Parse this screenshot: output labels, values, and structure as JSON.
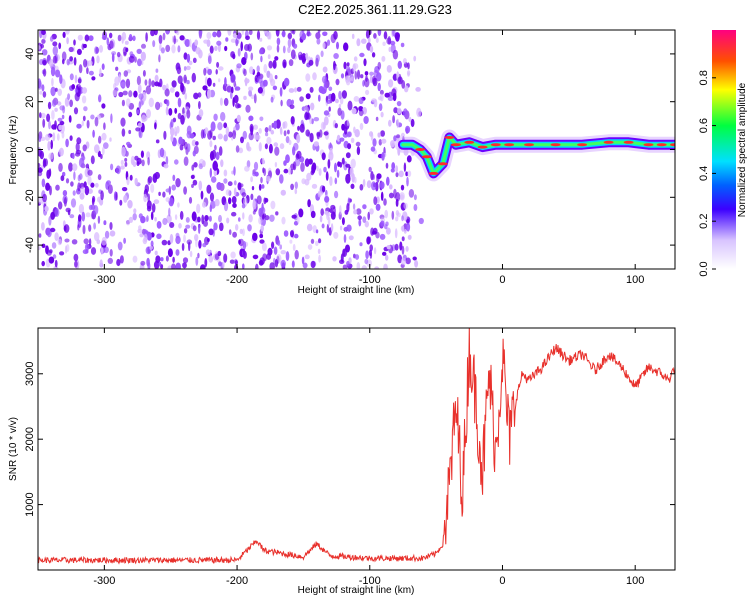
{
  "title": "C2E2.2025.361.11.29.G23",
  "colors": {
    "snr_line": "#e8312c",
    "speckle_dark": "#6a00e8",
    "speckle_light": "#d8b8ff"
  },
  "chart_data": [
    {
      "type": "heatmap",
      "xlabel": "Height of straight line (km)",
      "ylabel": "Frequency (Hz)",
      "xlim": [
        -350,
        130
      ],
      "ylim": [
        -50,
        50
      ],
      "xticks": [
        -300,
        -200,
        -100,
        0,
        100
      ],
      "yticks": [
        -40,
        -20,
        0,
        20,
        40
      ],
      "noise_region_x": [
        -350,
        -70
      ],
      "signal_track": {
        "x": [
          -75,
          -68,
          -62,
          -57,
          -52,
          -45,
          -40,
          -35,
          -25,
          -15,
          -5,
          5,
          20,
          40,
          60,
          80,
          95,
          110,
          120,
          130
        ],
        "y": [
          2,
          2,
          0,
          -3,
          -10,
          -6,
          5,
          2,
          3,
          1,
          2,
          2,
          2,
          2,
          2,
          3,
          3,
          2,
          2,
          2
        ]
      },
      "colorbar": {
        "label": "Normalized spectral amplitude",
        "ticks": [
          0.0,
          0.2,
          0.4,
          0.6,
          0.8
        ],
        "range": [
          0,
          1
        ],
        "tick_labels": [
          "0.0",
          "0.2",
          "0.4",
          "0.6",
          "0.8"
        ]
      }
    },
    {
      "type": "line",
      "xlabel": "Height of straight line (km)",
      "ylabel": "SNR (10 * v/v)",
      "xlim": [
        -350,
        130
      ],
      "ylim": [
        0,
        3700
      ],
      "xticks": [
        -300,
        -200,
        -100,
        0,
        100
      ],
      "yticks": [
        1000,
        2000,
        3000
      ],
      "series": [
        {
          "name": "SNR",
          "x": [
            -350,
            -300,
            -250,
            -200,
            -190,
            -185,
            -180,
            -150,
            -140,
            -130,
            -100,
            -60,
            -50,
            -45,
            -40,
            -35,
            -30,
            -25,
            -20,
            -15,
            -10,
            -5,
            0,
            5,
            10,
            15,
            20,
            30,
            40,
            50,
            60,
            70,
            80,
            90,
            100,
            110,
            120,
            125,
            130
          ],
          "y": [
            150,
            150,
            150,
            150,
            350,
            450,
            300,
            200,
            400,
            220,
            180,
            180,
            250,
            400,
            1300,
            2500,
            1200,
            3400,
            2600,
            1500,
            3000,
            1800,
            3300,
            2000,
            2600,
            3000,
            2900,
            3100,
            3400,
            3200,
            3300,
            3050,
            3300,
            3100,
            2800,
            3100,
            3000,
            2900,
            3100
          ]
        }
      ]
    }
  ]
}
